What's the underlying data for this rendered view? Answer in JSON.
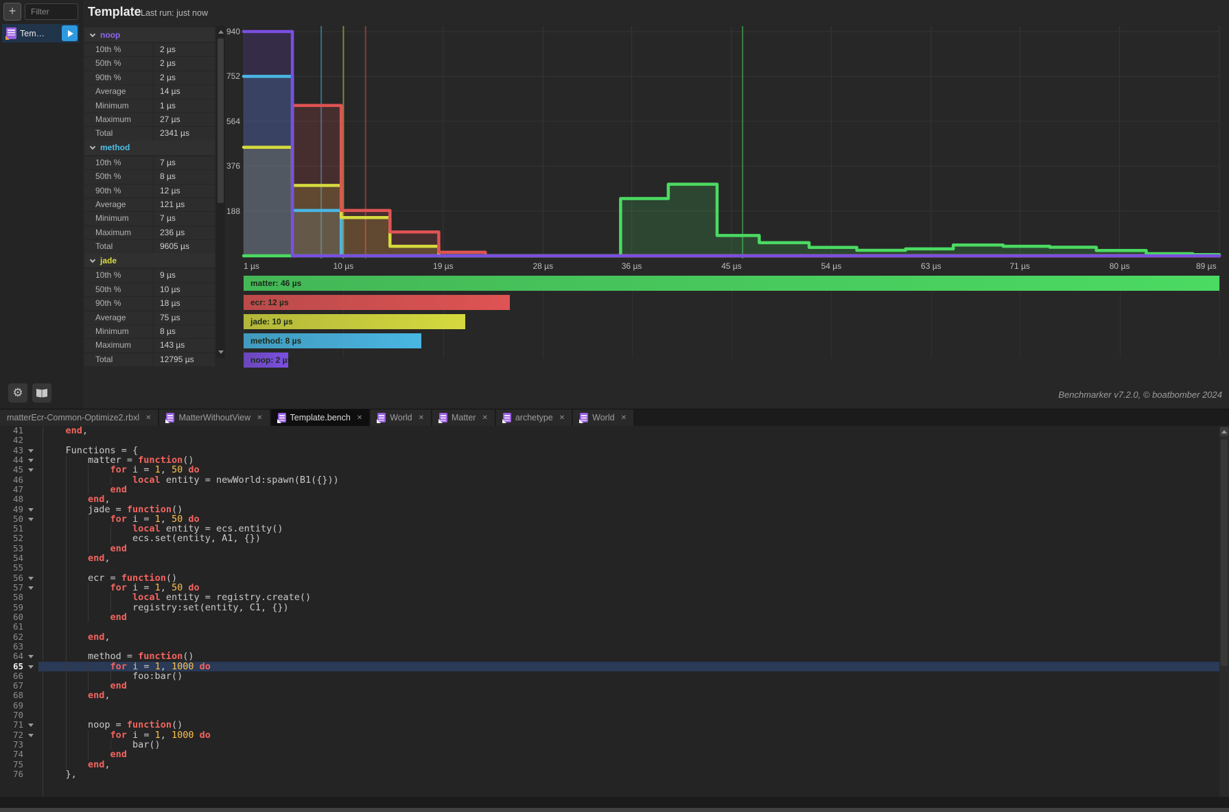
{
  "header": {
    "title": "Template",
    "last_run": "Last run: just now"
  },
  "sidebar": {
    "filter_placeholder": "Filter",
    "item_label": "Tem…",
    "add_label": "+"
  },
  "stats": {
    "row_labels": [
      "10th %",
      "50th %",
      "90th %",
      "Average",
      "Minimum",
      "Maximum",
      "Total"
    ],
    "sections": [
      {
        "name": "noop",
        "color": "#8f66f2",
        "values": [
          "2 µs",
          "2 µs",
          "2 µs",
          "14 µs",
          "1 µs",
          "27 µs",
          "2341 µs"
        ]
      },
      {
        "name": "method",
        "color": "#4fc1e9",
        "values": [
          "7 µs",
          "8 µs",
          "12 µs",
          "121 µs",
          "7 µs",
          "236 µs",
          "9605 µs"
        ]
      },
      {
        "name": "jade",
        "color": "#d9dc3f",
        "values": [
          "9 µs",
          "10 µs",
          "18 µs",
          "75 µs",
          "8 µs",
          "143 µs",
          "12795 µs"
        ]
      }
    ]
  },
  "chart_data": {
    "type": "step-histogram",
    "x_unit": "µs",
    "x_ticks": [
      1,
      10,
      19,
      28,
      36,
      45,
      54,
      63,
      71,
      80,
      89
    ],
    "y_ticks": [
      188,
      376,
      564,
      752,
      940
    ],
    "xlim": [
      1,
      89
    ],
    "ylim": [
      0,
      960
    ],
    "grid": true,
    "series": [
      {
        "name": "method",
        "color": "#49b6e3",
        "median_us": 8,
        "steps": [
          [
            1,
            752
          ],
          [
            5.4,
            190
          ],
          [
            9.8,
            0
          ]
        ],
        "end": 89
      },
      {
        "name": "jade",
        "color": "#d5da3e",
        "median_us": 10,
        "steps": [
          [
            1,
            455
          ],
          [
            5.4,
            295
          ],
          [
            9.8,
            160
          ],
          [
            14.2,
            40
          ],
          [
            18.6,
            0
          ]
        ],
        "end": 89
      },
      {
        "name": "ecr",
        "color": "#df5353",
        "median_us": 12,
        "steps": [
          [
            5.4,
            630
          ],
          [
            9.8,
            190
          ],
          [
            14.2,
            100
          ],
          [
            18.6,
            15
          ],
          [
            22.8,
            0
          ]
        ],
        "end": 89
      },
      {
        "name": "matter",
        "color": "#4bda62",
        "median_us": 46,
        "steps": [
          [
            1,
            0
          ],
          [
            35,
            240
          ],
          [
            39.3,
            300
          ],
          [
            43.7,
            85
          ],
          [
            47.5,
            55
          ],
          [
            52,
            35
          ],
          [
            56.3,
            23
          ],
          [
            60.7,
            29
          ],
          [
            65,
            45
          ],
          [
            69.5,
            40
          ],
          [
            73.7,
            36
          ],
          [
            77.9,
            22
          ],
          [
            82.4,
            9
          ],
          [
            86.6,
            5
          ]
        ],
        "end": 89
      },
      {
        "name": "noop",
        "color": "#7b4fe0",
        "median_us": 2,
        "steps": [
          [
            1,
            940
          ],
          [
            5.4,
            0
          ]
        ],
        "end": 89
      }
    ],
    "median_markers": [
      {
        "series": "method",
        "x": 8,
        "color": "#49b6e3"
      },
      {
        "series": "jade",
        "x": 10,
        "color": "#d5da3e"
      },
      {
        "series": "ecr",
        "x": 12,
        "color": "#df5353"
      },
      {
        "series": "matter",
        "x": 46,
        "color": "#4bda62"
      }
    ],
    "legend_order": [
      "matter",
      "ecr",
      "jade",
      "method",
      "noop"
    ],
    "legend_labels": [
      "matter: 46 µs",
      "ecr: 12 µs",
      "jade: 10 µs",
      "method: 8 µs",
      "noop: 2 µs"
    ]
  },
  "footer": {
    "credit": "Benchmarker v7.2.0, © boatbomber 2024"
  },
  "tabs": [
    {
      "label": "matterEcr-Common-Optimize2.rbxl",
      "icon": false,
      "active": false
    },
    {
      "label": "MatterWithoutView",
      "icon": true,
      "active": false
    },
    {
      "label": "Template.bench",
      "icon": true,
      "active": true
    },
    {
      "label": "World",
      "icon": true,
      "active": false
    },
    {
      "label": "Matter",
      "icon": true,
      "active": false
    },
    {
      "label": "archetype",
      "icon": true,
      "active": false
    },
    {
      "label": "World",
      "icon": true,
      "active": false
    }
  ],
  "symbols": {
    "close": "✕",
    "gear": "⚙"
  },
  "code": {
    "lines": [
      {
        "n": 41,
        "fold": false,
        "hl": false,
        "tokens": [
          [
            "t",
            "    "
          ],
          [
            "k",
            "end"
          ],
          [
            "t",
            ","
          ]
        ]
      },
      {
        "n": 42,
        "fold": false,
        "hl": false,
        "tokens": []
      },
      {
        "n": 43,
        "fold": true,
        "hl": false,
        "tokens": [
          [
            "t",
            "    Functions = {"
          ]
        ]
      },
      {
        "n": 44,
        "fold": true,
        "hl": false,
        "tokens": [
          [
            "t",
            "        matter = "
          ],
          [
            "k",
            "function"
          ],
          [
            "t",
            "()"
          ]
        ]
      },
      {
        "n": 45,
        "fold": true,
        "hl": false,
        "tokens": [
          [
            "t",
            "            "
          ],
          [
            "k",
            "for"
          ],
          [
            "t",
            " i = "
          ],
          [
            "n",
            "1"
          ],
          [
            "t",
            ", "
          ],
          [
            "n",
            "50"
          ],
          [
            "t",
            " "
          ],
          [
            "k",
            "do"
          ]
        ]
      },
      {
        "n": 46,
        "fold": false,
        "hl": false,
        "tokens": [
          [
            "t",
            "                "
          ],
          [
            "k",
            "local"
          ],
          [
            "t",
            " entity = newWorld:spawn(B1({}))"
          ]
        ]
      },
      {
        "n": 47,
        "fold": false,
        "hl": false,
        "tokens": [
          [
            "t",
            "            "
          ],
          [
            "k",
            "end"
          ]
        ]
      },
      {
        "n": 48,
        "fold": false,
        "hl": false,
        "tokens": [
          [
            "t",
            "        "
          ],
          [
            "k",
            "end"
          ],
          [
            "t",
            ","
          ]
        ]
      },
      {
        "n": 49,
        "fold": true,
        "hl": false,
        "tokens": [
          [
            "t",
            "        jade = "
          ],
          [
            "k",
            "function"
          ],
          [
            "t",
            "()"
          ]
        ]
      },
      {
        "n": 50,
        "fold": true,
        "hl": false,
        "tokens": [
          [
            "t",
            "            "
          ],
          [
            "k",
            "for"
          ],
          [
            "t",
            " i = "
          ],
          [
            "n",
            "1"
          ],
          [
            "t",
            ", "
          ],
          [
            "n",
            "50"
          ],
          [
            "t",
            " "
          ],
          [
            "k",
            "do"
          ]
        ]
      },
      {
        "n": 51,
        "fold": false,
        "hl": false,
        "tokens": [
          [
            "t",
            "                "
          ],
          [
            "k",
            "local"
          ],
          [
            "t",
            " entity = ecs.entity()"
          ]
        ]
      },
      {
        "n": 52,
        "fold": false,
        "hl": false,
        "tokens": [
          [
            "t",
            "                ecs.set(entity, A1, {})"
          ]
        ]
      },
      {
        "n": 53,
        "fold": false,
        "hl": false,
        "tokens": [
          [
            "t",
            "            "
          ],
          [
            "k",
            "end"
          ]
        ]
      },
      {
        "n": 54,
        "fold": false,
        "hl": false,
        "tokens": [
          [
            "t",
            "        "
          ],
          [
            "k",
            "end"
          ],
          [
            "t",
            ","
          ]
        ]
      },
      {
        "n": 55,
        "fold": false,
        "hl": false,
        "tokens": []
      },
      {
        "n": 56,
        "fold": true,
        "hl": false,
        "tokens": [
          [
            "t",
            "        ecr = "
          ],
          [
            "k",
            "function"
          ],
          [
            "t",
            "()"
          ]
        ]
      },
      {
        "n": 57,
        "fold": true,
        "hl": false,
        "tokens": [
          [
            "t",
            "            "
          ],
          [
            "k",
            "for"
          ],
          [
            "t",
            " i = "
          ],
          [
            "n",
            "1"
          ],
          [
            "t",
            ", "
          ],
          [
            "n",
            "50"
          ],
          [
            "t",
            " "
          ],
          [
            "k",
            "do"
          ]
        ]
      },
      {
        "n": 58,
        "fold": false,
        "hl": false,
        "tokens": [
          [
            "t",
            "                "
          ],
          [
            "k",
            "local"
          ],
          [
            "t",
            " entity = registry.create()"
          ]
        ]
      },
      {
        "n": 59,
        "fold": false,
        "hl": false,
        "tokens": [
          [
            "t",
            "                registry:set(entity, C1, {})"
          ]
        ]
      },
      {
        "n": 60,
        "fold": false,
        "hl": false,
        "tokens": [
          [
            "t",
            "            "
          ],
          [
            "k",
            "end"
          ]
        ]
      },
      {
        "n": 61,
        "fold": false,
        "hl": false,
        "tokens": []
      },
      {
        "n": 62,
        "fold": false,
        "hl": false,
        "tokens": [
          [
            "t",
            "        "
          ],
          [
            "k",
            "end"
          ],
          [
            "t",
            ","
          ]
        ]
      },
      {
        "n": 63,
        "fold": false,
        "hl": false,
        "tokens": []
      },
      {
        "n": 64,
        "fold": true,
        "hl": false,
        "tokens": [
          [
            "t",
            "        method = "
          ],
          [
            "k",
            "function"
          ],
          [
            "t",
            "()"
          ]
        ]
      },
      {
        "n": 65,
        "fold": true,
        "hl": true,
        "tokens": [
          [
            "t",
            "            "
          ],
          [
            "k",
            "for"
          ],
          [
            "t",
            " i = "
          ],
          [
            "n",
            "1"
          ],
          [
            "t",
            ", "
          ],
          [
            "n",
            "1000"
          ],
          [
            "t",
            " "
          ],
          [
            "k",
            "do"
          ]
        ]
      },
      {
        "n": 66,
        "fold": false,
        "hl": false,
        "tokens": [
          [
            "t",
            "                foo:bar()"
          ]
        ]
      },
      {
        "n": 67,
        "fold": false,
        "hl": false,
        "tokens": [
          [
            "t",
            "            "
          ],
          [
            "k",
            "end"
          ]
        ]
      },
      {
        "n": 68,
        "fold": false,
        "hl": false,
        "tokens": [
          [
            "t",
            "        "
          ],
          [
            "k",
            "end"
          ],
          [
            "t",
            ","
          ]
        ]
      },
      {
        "n": 69,
        "fold": false,
        "hl": false,
        "tokens": []
      },
      {
        "n": 70,
        "fold": false,
        "hl": false,
        "tokens": []
      },
      {
        "n": 71,
        "fold": true,
        "hl": false,
        "tokens": [
          [
            "t",
            "        noop = "
          ],
          [
            "k",
            "function"
          ],
          [
            "t",
            "()"
          ]
        ]
      },
      {
        "n": 72,
        "fold": true,
        "hl": false,
        "tokens": [
          [
            "t",
            "            "
          ],
          [
            "k",
            "for"
          ],
          [
            "t",
            " i = "
          ],
          [
            "n",
            "1"
          ],
          [
            "t",
            ", "
          ],
          [
            "n",
            "1000"
          ],
          [
            "t",
            " "
          ],
          [
            "k",
            "do"
          ]
        ]
      },
      {
        "n": 73,
        "fold": false,
        "hl": false,
        "tokens": [
          [
            "t",
            "                bar()"
          ]
        ]
      },
      {
        "n": 74,
        "fold": false,
        "hl": false,
        "tokens": [
          [
            "t",
            "            "
          ],
          [
            "k",
            "end"
          ]
        ]
      },
      {
        "n": 75,
        "fold": false,
        "hl": false,
        "tokens": [
          [
            "t",
            "        "
          ],
          [
            "k",
            "end"
          ],
          [
            "t",
            ","
          ]
        ]
      },
      {
        "n": 76,
        "fold": false,
        "hl": false,
        "tokens": [
          [
            "t",
            "    },"
          ]
        ]
      }
    ]
  }
}
